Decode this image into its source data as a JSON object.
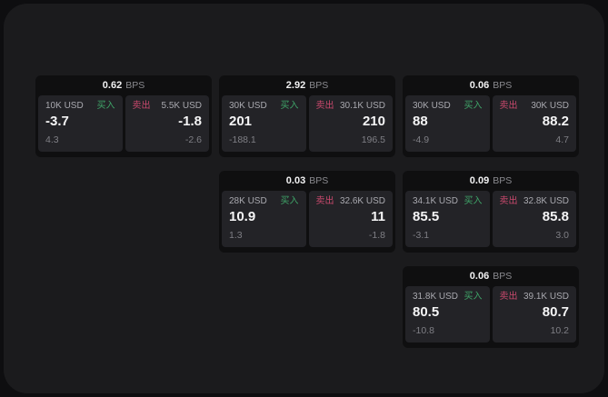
{
  "labels": {
    "bps": "BPS",
    "buy": "买入",
    "sell": "卖出"
  },
  "colors": {
    "surface": "#1b1b1d",
    "card": "#0f0f10",
    "panel": "#232327",
    "buy_green": "#3fa468",
    "sell_red": "#c9496d"
  },
  "cards": [
    {
      "bps": "0.62",
      "buy": {
        "amount": "10K USD",
        "value": "-3.7",
        "sub": "4.3"
      },
      "sell": {
        "amount": "5.5K USD",
        "value": "-1.8",
        "sub": "-2.6"
      }
    },
    {
      "bps": "2.92",
      "buy": {
        "amount": "30K USD",
        "value": "201",
        "sub": "-188.1"
      },
      "sell": {
        "amount": "30.1K USD",
        "value": "210",
        "sub": "196.5"
      }
    },
    {
      "bps": "0.06",
      "buy": {
        "amount": "30K USD",
        "value": "88",
        "sub": "-4.9"
      },
      "sell": {
        "amount": "30K USD",
        "value": "88.2",
        "sub": "4.7"
      }
    },
    {
      "bps": "0.03",
      "buy": {
        "amount": "28K USD",
        "value": "10.9",
        "sub": "1.3"
      },
      "sell": {
        "amount": "32.6K USD",
        "value": "11",
        "sub": "-1.8"
      }
    },
    {
      "bps": "0.09",
      "buy": {
        "amount": "34.1K USD",
        "value": "85.5",
        "sub": "-3.1"
      },
      "sell": {
        "amount": "32.8K USD",
        "value": "85.8",
        "sub": "3.0"
      }
    },
    {
      "bps": "0.06",
      "buy": {
        "amount": "31.8K USD",
        "value": "80.5",
        "sub": "-10.8"
      },
      "sell": {
        "amount": "39.1K USD",
        "value": "80.7",
        "sub": "10.2"
      }
    }
  ]
}
